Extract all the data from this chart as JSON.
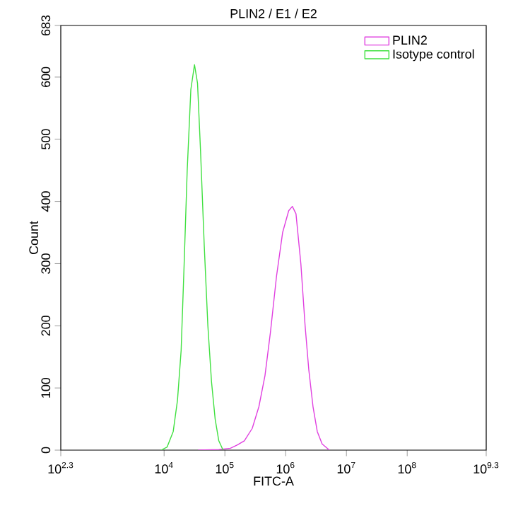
{
  "chart_data": {
    "type": "line",
    "title": "PLIN2 / E1 / E2",
    "xlabel": "FITC-A",
    "ylabel": "Count",
    "log": "x",
    "xlim": [
      199.526,
      1995262315
    ],
    "ylim": [
      0,
      683
    ],
    "xticks": [
      {
        "value": 199.526,
        "label": "10$^{2.3}$"
      },
      {
        "value": 10000,
        "label": "10$^{4}$"
      },
      {
        "value": 100000,
        "label": "10$^{5}$"
      },
      {
        "value": 1000000,
        "label": "10$^{6}$"
      },
      {
        "value": 10000000,
        "label": "10$^{7}$"
      },
      {
        "value": 100000000,
        "label": "10$^{8}$"
      },
      {
        "value": 1995262315,
        "label": "10$^{9.3}$"
      }
    ],
    "yticks": [
      0,
      100,
      200,
      300,
      400,
      500,
      600,
      683
    ],
    "grid": false,
    "legend": "top right",
    "marker": "none",
    "line_style": "solid",
    "series": [
      {
        "name": "PLIN2",
        "color": "#e040e0",
        "x": [
          36308,
          79433,
          123027,
          158489,
          208930,
          281838,
          363078,
          457088,
          562341,
          707946,
          891251,
          1122018,
          1288250,
          1479108,
          1778279,
          2089296,
          2398833,
          2818383,
          3311311,
          3981072,
          5248075
        ],
        "values": [
          0,
          1,
          3,
          8,
          15,
          35,
          70,
          120,
          190,
          280,
          350,
          385,
          392,
          380,
          300,
          200,
          130,
          70,
          30,
          10,
          0
        ]
      },
      {
        "name": "Isotype control",
        "color": "#40e040",
        "x": [
          8913,
          11220,
          14125,
          16596,
          19055,
          21380,
          23988,
          27542,
          31623,
          35481,
          39811,
          45709,
          52481,
          60256,
          69183,
          79433,
          93325
        ],
        "values": [
          0,
          5,
          30,
          80,
          160,
          300,
          450,
          580,
          620,
          590,
          480,
          330,
          200,
          110,
          50,
          15,
          0
        ]
      }
    ]
  }
}
